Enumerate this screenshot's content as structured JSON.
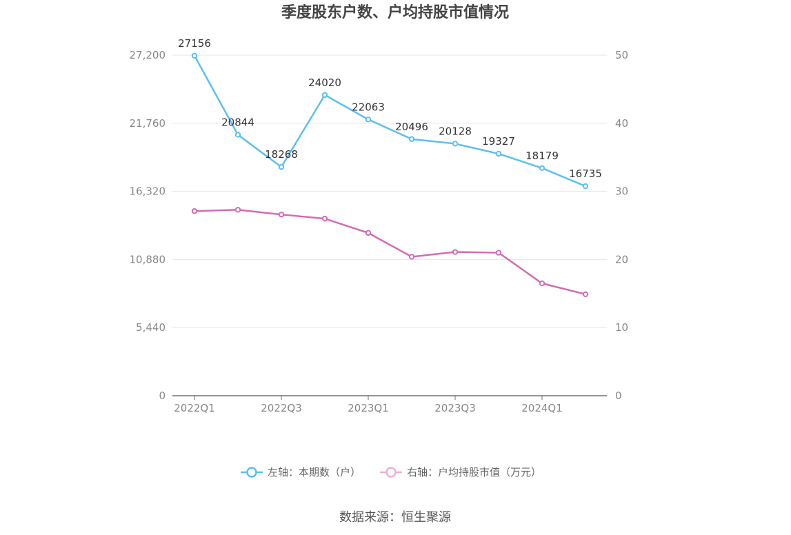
{
  "chart_data": {
    "type": "line",
    "title": "季度股东户数、户均持股市值情况",
    "categories": [
      "2022Q1",
      "2022Q2",
      "2022Q3",
      "2022Q4",
      "2023Q1",
      "2023Q2",
      "2023Q3",
      "2023Q4",
      "2024Q1",
      "2024Q2"
    ],
    "x_tick_labels": [
      "2022Q1",
      "2022Q3",
      "2023Q1",
      "2023Q3",
      "2024Q1"
    ],
    "y_left": {
      "ticks": [
        0,
        5440,
        10880,
        16320,
        21760,
        27200
      ],
      "tick_labels": [
        "0",
        "5,440",
        "10,880",
        "16,320",
        "21,760",
        "27,200"
      ],
      "ylim": [
        0,
        27200
      ]
    },
    "y_right": {
      "ticks": [
        0,
        10,
        20,
        30,
        40,
        50
      ],
      "tick_labels": [
        "0",
        "10",
        "20",
        "30",
        "40",
        "50"
      ],
      "ylim": [
        0,
        50
      ]
    },
    "series": [
      {
        "name": "左轴：本期数（户）",
        "axis": "left",
        "color": "#5bbff0",
        "values": [
          27156,
          20844,
          18268,
          24020,
          22063,
          20496,
          20128,
          19327,
          18179,
          16735
        ],
        "show_labels": true
      },
      {
        "name": "右轴：户均持股市值（万元）",
        "axis": "right",
        "color": "#d46bb2",
        "legend_color": "#e8b2d8",
        "values": [
          27.1,
          27.3,
          26.6,
          26.0,
          23.9,
          20.4,
          21.1,
          21.0,
          16.5,
          14.9
        ],
        "show_labels": false
      }
    ],
    "grid": true,
    "legend_position": "bottom"
  },
  "source": "数据来源：恒生聚源"
}
